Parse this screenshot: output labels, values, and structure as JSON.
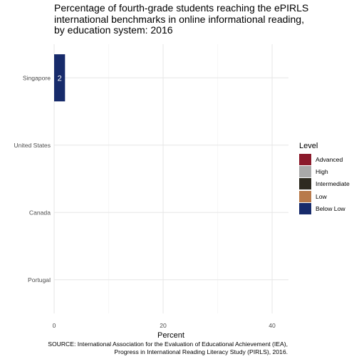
{
  "chart_data": {
    "type": "bar",
    "orientation": "horizontal",
    "stacked": true,
    "title_lines": [
      "Percentage of fourth-grade students reaching the ePIRLS",
      "international benchmarks in online informational reading,",
      "by education system: 2016"
    ],
    "xlabel": "Percent",
    "ylabel": "",
    "categories": [
      "Singapore",
      "United States",
      "Canada",
      "Portugal"
    ],
    "xlim": [
      0,
      43
    ],
    "x_ticks": [
      0,
      20,
      40
    ],
    "grid": true,
    "legend_title": "Level",
    "legend_position": "right",
    "series": [
      {
        "name": "Advanced",
        "color": "#8B1A2B",
        "values": [
          0,
          0,
          0,
          0
        ]
      },
      {
        "name": "High",
        "color": "#A9A9A9",
        "values": [
          0,
          0,
          0,
          0
        ]
      },
      {
        "name": "Intermediate",
        "color": "#2E2A20",
        "values": [
          0,
          0,
          0,
          0
        ]
      },
      {
        "name": "Low",
        "color": "#B87A4B",
        "values": [
          0,
          0,
          0,
          0
        ]
      },
      {
        "name": "Below Low",
        "color": "#172B6B",
        "values": [
          2,
          0,
          0,
          0
        ]
      }
    ],
    "data_labels": [
      {
        "category": "Singapore",
        "series": "Below Low",
        "text": "2"
      }
    ],
    "source_lines": [
      "SOURCE: International Association for the Evaluation of Educational Achievement (IEA),",
      "Progress in International Reading Literacy Study (PIRLS), 2016."
    ]
  }
}
